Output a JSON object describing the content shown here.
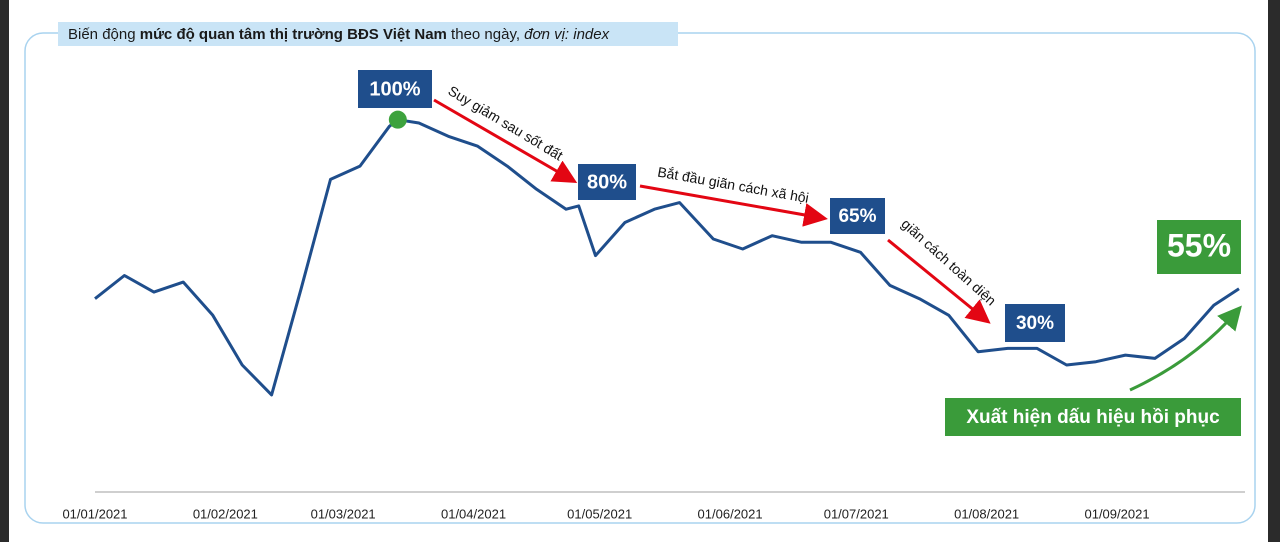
{
  "chart_data": {
    "type": "line",
    "title_parts": [
      "Biến động ",
      "mức độ quan tâm thị trường BĐS Việt Nam",
      " theo ngày, ",
      "đơn vị: index"
    ],
    "x": [
      "2021-01-01",
      "2021-01-08",
      "2021-01-15",
      "2021-01-22",
      "2021-01-29",
      "2021-02-05",
      "2021-02-12",
      "2021-02-19",
      "2021-02-26",
      "2021-03-05",
      "2021-03-12",
      "2021-03-14",
      "2021-03-19",
      "2021-03-26",
      "2021-04-02",
      "2021-04-09",
      "2021-04-16",
      "2021-04-23",
      "2021-04-26",
      "2021-04-30",
      "2021-05-07",
      "2021-05-14",
      "2021-05-20",
      "2021-05-28",
      "2021-06-04",
      "2021-06-11",
      "2021-06-18",
      "2021-06-25",
      "2021-07-02",
      "2021-07-09",
      "2021-07-16",
      "2021-07-23",
      "2021-07-30",
      "2021-08-06",
      "2021-08-13",
      "2021-08-20",
      "2021-08-27",
      "2021-09-03",
      "2021-09-10",
      "2021-09-17",
      "2021-09-24",
      "2021-09-30"
    ],
    "values": [
      46,
      53,
      48,
      51,
      41,
      26,
      17,
      49,
      82,
      86,
      98,
      100,
      99,
      95,
      92,
      86,
      79,
      73,
      74,
      59,
      69,
      73,
      75,
      64,
      61,
      65,
      63,
      63,
      60,
      50,
      46,
      41,
      30,
      31,
      31,
      26,
      27,
      29,
      28,
      34,
      44,
      49
    ],
    "color": "#1f4e8c",
    "xlim": [
      "2021-01-01",
      "2021-09-30"
    ],
    "xticks": [
      {
        "value": "2021-01-01",
        "label": "01/01/2021"
      },
      {
        "value": "2021-02-01",
        "label": "01/02/2021"
      },
      {
        "value": "2021-03-01",
        "label": "01/03/2021"
      },
      {
        "value": "2021-04-01",
        "label": "01/04/2021"
      },
      {
        "value": "2021-05-01",
        "label": "01/05/2021"
      },
      {
        "value": "2021-06-01",
        "label": "01/06/2021"
      },
      {
        "value": "2021-07-01",
        "label": "01/07/2021"
      },
      {
        "value": "2021-08-01",
        "label": "01/08/2021"
      },
      {
        "value": "2021-09-01",
        "label": "01/09/2021"
      }
    ],
    "ylim": [
      -12,
      118
    ],
    "annotations": [
      "100%",
      "80%",
      "65%",
      "30%",
      "55%"
    ],
    "arrow_labels": [
      "Suy giảm sau sốt đất",
      "Bắt đầu giãn cách xã hội",
      "giãn cách toàn diện"
    ],
    "recovery_label": "Xuất hiện dấu hiệu hồi phục"
  }
}
